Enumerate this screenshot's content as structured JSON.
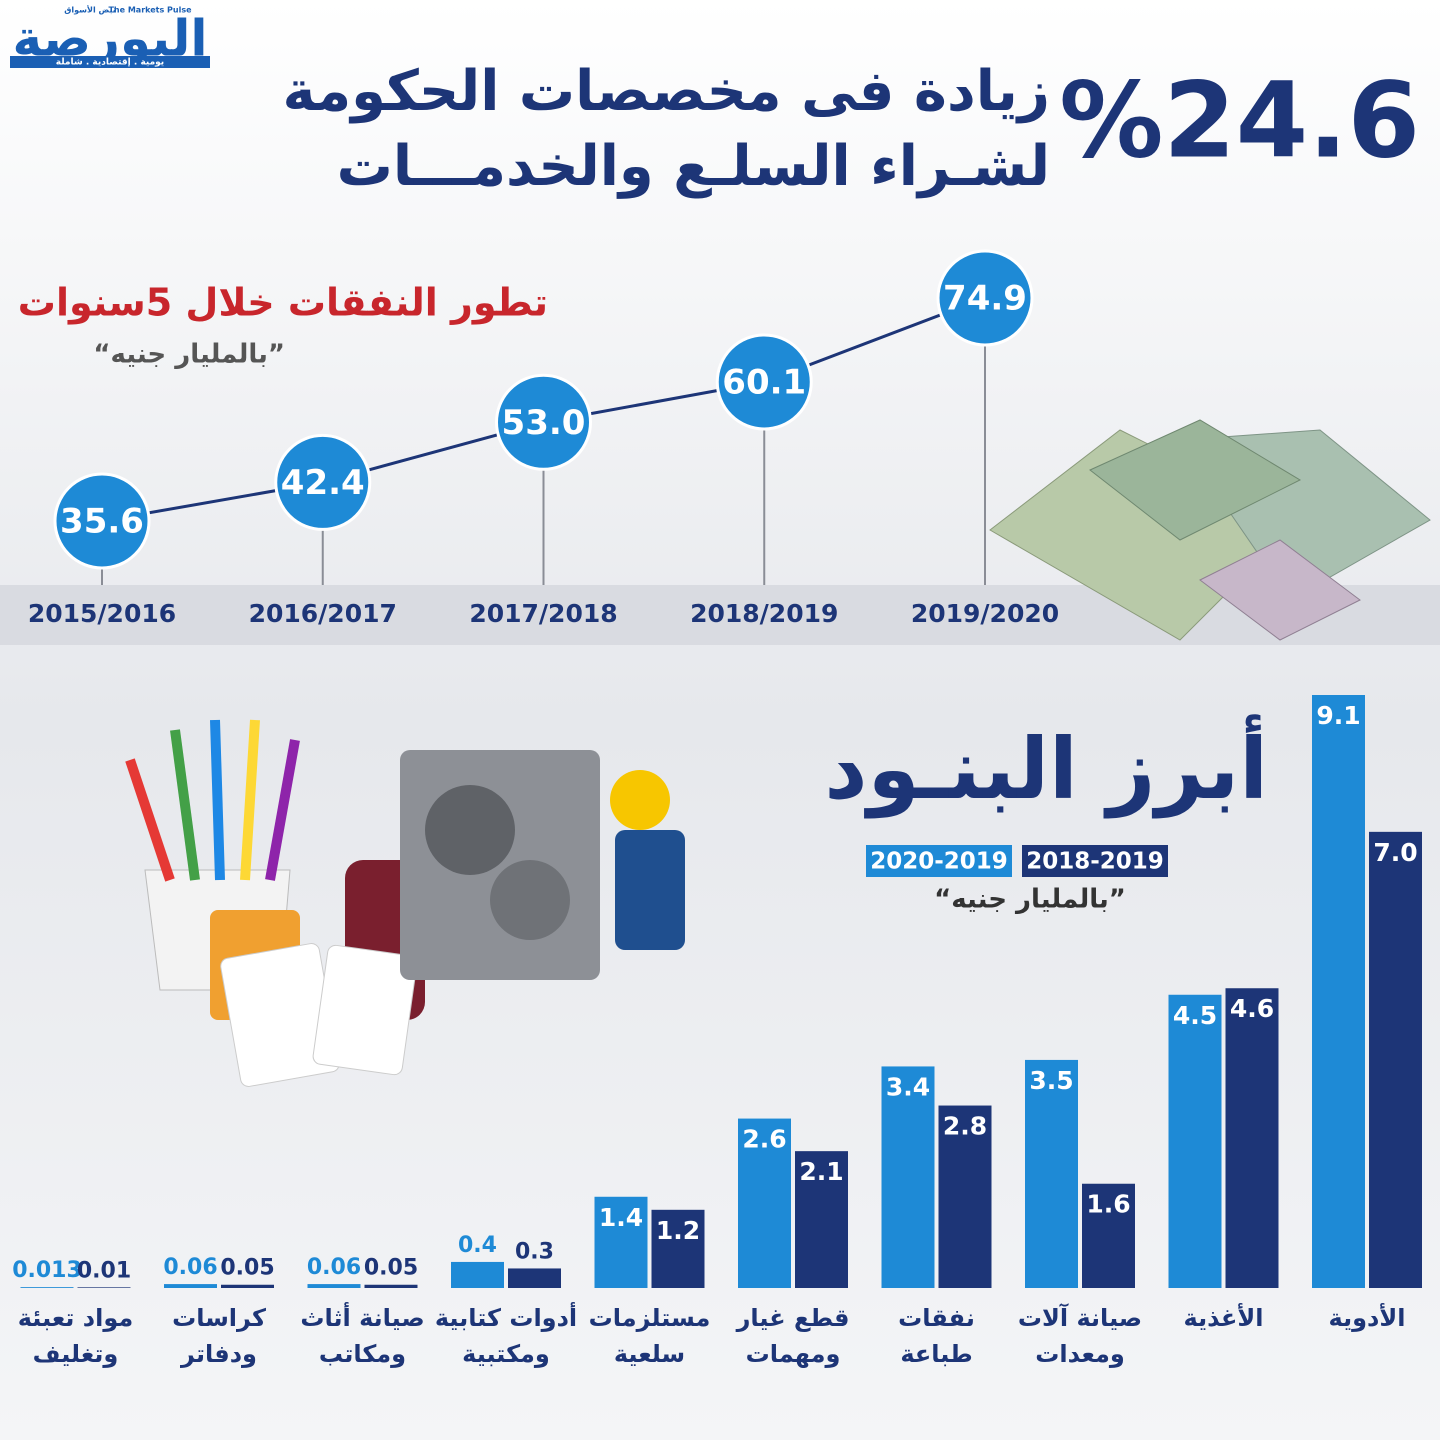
{
  "header": {
    "logo": "البورصة",
    "logo_en": "The Markets Pulse",
    "logo_ar_tag": "نبض الأسواق",
    "logo_tagline": "يومية . إقتصادية . شاملة",
    "headline_number": "%24.6",
    "headline_line1": "زيادة فى مخصصات الحكومة",
    "headline_line2": "لشـراء السلـع والخدمـــات"
  },
  "chart_data": [
    {
      "type": "line",
      "title": "تطور النفقات خلال 5سنوات",
      "subtitle": "“بالمليار جنيه”",
      "categories": [
        "2015/2016",
        "2016/2017",
        "2017/2018",
        "2018/2019",
        "2019/2020"
      ],
      "values": [
        35.6,
        42.4,
        53.0,
        60.1,
        74.9
      ],
      "value_labels": [
        "35.6",
        "42.4",
        "53.0",
        "60.1",
        "74.9"
      ],
      "color": "#1e8ad6"
    },
    {
      "type": "bar",
      "title": "أبرز البنـود",
      "subtitle": "“بالمليار جنيه”",
      "categories": [
        "الأدوية",
        "الأغذية",
        "صيانة آلات ومعدات",
        "نفقات طباعة",
        "قطع غيار ومهمات",
        "مستلزمات سلعية",
        "أدوات كتابية ومكتبية",
        "صيانة أثاث ومكاتب",
        "كراسات ودفاتر",
        "مواد تعبئة وتغليف"
      ],
      "series": [
        {
          "name": "2020-2019",
          "color": "#1e8ad6",
          "values": [
            9.1,
            4.5,
            3.5,
            3.4,
            2.6,
            1.4,
            0.4,
            0.06,
            0.06,
            0.013
          ],
          "value_labels": [
            "9.1",
            "4.5",
            "3.5",
            "3.4",
            "2.6",
            "1.4",
            "0.4",
            "0.06",
            "0.06",
            "0.013"
          ]
        },
        {
          "name": "2018-2019",
          "color": "#1d3577",
          "values": [
            7.0,
            4.6,
            1.6,
            2.8,
            2.1,
            1.2,
            0.3,
            0.05,
            0.05,
            0.01
          ],
          "value_labels": [
            "7.0",
            "4.6",
            "1.6",
            "2.8",
            "2.1",
            "1.2",
            "0.3",
            "0.05",
            "0.05",
            "0.01"
          ]
        }
      ]
    }
  ]
}
